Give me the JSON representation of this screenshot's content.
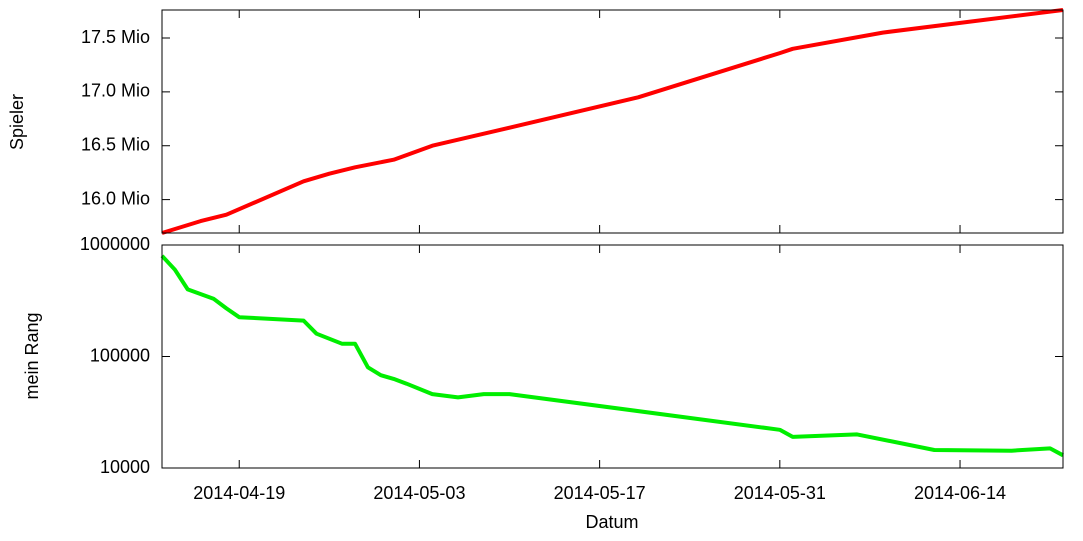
{
  "chart_data": [
    {
      "type": "line",
      "ylabel": "Spieler",
      "x": [
        "2014-04-13",
        "2014-04-16",
        "2014-04-18",
        "2014-04-24",
        "2014-04-26",
        "2014-04-28",
        "2014-05-01",
        "2014-05-04",
        "2014-05-09",
        "2014-05-20",
        "2014-05-31",
        "2014-06-01",
        "2014-06-08",
        "2014-06-22"
      ],
      "series": [
        {
          "name": "Spieler",
          "color": "#ff0000",
          "values": [
            15.69,
            15.8,
            15.86,
            16.17,
            16.24,
            16.3,
            16.37,
            16.5,
            16.64,
            16.95,
            17.36,
            17.4,
            17.55,
            17.76
          ]
        }
      ],
      "xlim": [
        "2014-04-13",
        "2014-06-22"
      ],
      "ylim": [
        15.69,
        17.76
      ],
      "yticks": [
        {
          "value": 16.0,
          "label": "16.0 Mio"
        },
        {
          "value": 16.5,
          "label": "16.5 Mio"
        },
        {
          "value": 17.0,
          "label": "17.0 Mio"
        },
        {
          "value": 17.5,
          "label": "17.5 Mio"
        }
      ]
    },
    {
      "type": "line",
      "ylabel": "mein Rang",
      "xlabel": "Datum",
      "log_scale": true,
      "x": [
        "2014-04-13",
        "2014-04-14",
        "2014-04-15",
        "2014-04-17",
        "2014-04-18",
        "2014-04-19",
        "2014-04-24",
        "2014-04-25",
        "2014-04-27",
        "2014-04-28",
        "2014-04-29",
        "2014-04-30",
        "2014-05-01",
        "2014-05-02",
        "2014-05-04",
        "2014-05-06",
        "2014-05-08",
        "2014-05-10",
        "2014-05-31",
        "2014-06-01",
        "2014-06-06",
        "2014-06-12",
        "2014-06-18",
        "2014-06-21",
        "2014-06-22"
      ],
      "series": [
        {
          "name": "mein Rang",
          "color": "#00ee00",
          "values": [
            800000,
            600000,
            400000,
            330000,
            270000,
            225000,
            210000,
            160000,
            130000,
            130000,
            80000,
            68000,
            63000,
            57000,
            46000,
            43000,
            46000,
            46000,
            22000,
            19000,
            20000,
            14500,
            14300,
            15000,
            13000
          ]
        }
      ],
      "xlim": [
        "2014-04-13",
        "2014-06-22"
      ],
      "xticks": [
        "2014-04-19",
        "2014-05-03",
        "2014-05-17",
        "2014-05-31",
        "2014-06-14"
      ],
      "ylim": [
        10000,
        1000000
      ],
      "yticks": [
        10000,
        100000,
        1000000
      ]
    }
  ]
}
